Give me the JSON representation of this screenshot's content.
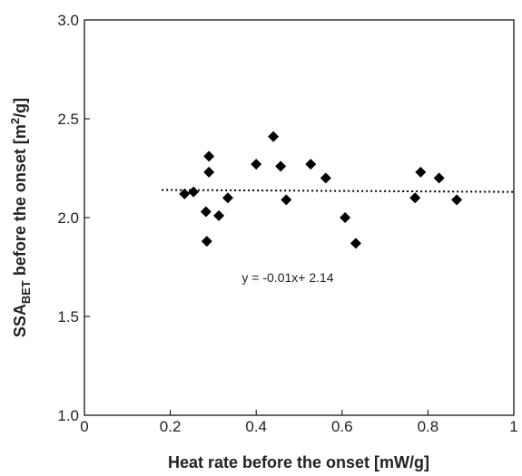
{
  "chart_data": {
    "type": "scatter",
    "x_label": "Heat rate before the onset [mW/g]",
    "y_label": {
      "main": "SSA",
      "sub": "BET",
      "middle": " before the onset [m",
      "sup": "2",
      "end": "/g]"
    },
    "annotation": "y = -0.01x+ 2.14",
    "x": [
      0.233,
      0.254,
      0.285,
      0.283,
      0.29,
      0.29,
      0.313,
      0.334,
      0.4,
      0.44,
      0.457,
      0.47,
      0.527,
      0.562,
      0.607,
      0.632,
      0.77,
      0.783,
      0.826,
      0.867
    ],
    "y": [
      2.12,
      2.13,
      1.88,
      2.03,
      2.31,
      2.23,
      2.01,
      2.1,
      2.27,
      2.41,
      2.26,
      2.09,
      2.27,
      2.2,
      2.0,
      1.87,
      2.1,
      2.23,
      2.2,
      2.09
    ],
    "color": "#000000",
    "fit_line": {
      "x": [
        0.18,
        1
      ],
      "y": [
        2.14,
        2.13
      ]
    },
    "xlim": [
      0,
      1
    ],
    "xticks": [
      0,
      0.2,
      0.4,
      0.6,
      0.8,
      1
    ],
    "ylim": [
      1,
      3
    ],
    "yticks": [
      {
        "value": 1,
        "label": "1.0"
      },
      {
        "value": 1.5,
        "label": "1.5"
      },
      {
        "value": 2,
        "label": "2.0"
      },
      {
        "value": 2.5,
        "label": "2.5"
      },
      {
        "value": 3,
        "label": "3.0"
      }
    ]
  }
}
